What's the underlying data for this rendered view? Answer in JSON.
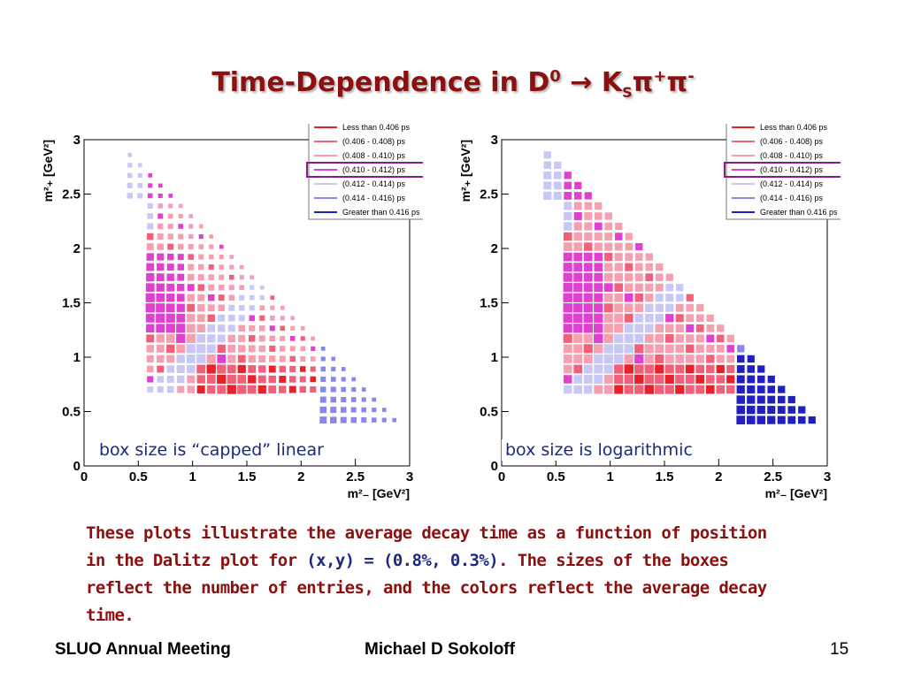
{
  "title": {
    "prefix": "Time-Dependence in D",
    "d_sup": "0",
    "arrow": " → K",
    "k_sub": "S",
    "pi1": "π",
    "pi1_sup": "+",
    "pi2": "π",
    "pi2_sup": "-"
  },
  "legend": {
    "entries": [
      {
        "label": "Less than 0.406 ps",
        "color": "#e8202a"
      },
      {
        "label": "(0.406 - 0.408) ps",
        "color": "#f06078"
      },
      {
        "label": "(0.408 - 0.410) ps",
        "color": "#f5a0b0"
      },
      {
        "label": "(0.410 - 0.412) ps",
        "color": "#e040d0"
      },
      {
        "label": "(0.412 - 0.414) ps",
        "color": "#c8c8f5"
      },
      {
        "label": "(0.414 - 0.416) ps",
        "color": "#8888e8"
      },
      {
        "label": "Greater than 0.416 ps",
        "color": "#2020c0"
      }
    ],
    "highlight_index": 3,
    "highlight_color": "#8a1a8a"
  },
  "chart_data": [
    {
      "type": "heatmap",
      "xlabel": "m²₋ [GeV²]",
      "ylabel": "m²₊ [GeV²]",
      "xlim": [
        0,
        3
      ],
      "ylim": [
        0,
        3
      ],
      "xticks": [
        "0",
        "0.5",
        "1",
        "1.5",
        "2",
        "2.5",
        "3"
      ],
      "yticks": [
        "0",
        "0.5",
        "1",
        "1.5",
        "2",
        "2.5",
        "3"
      ],
      "caption": "box size is “capped” linear",
      "box_scale": "linear-capped",
      "grid": false,
      "legend_position": "top-right"
    },
    {
      "type": "heatmap",
      "xlabel": "m²₋ [GeV²]",
      "ylabel": "m²₊ [GeV²]",
      "xlim": [
        0,
        3
      ],
      "ylim": [
        0,
        3
      ],
      "xticks": [
        "0",
        "0.5",
        "1",
        "1.5",
        "2",
        "2.5",
        "3"
      ],
      "yticks": [
        "0",
        "0.5",
        "1",
        "1.5",
        "2",
        "2.5",
        "3"
      ],
      "caption": "box size is logarithmic",
      "box_scale": "logarithmic",
      "grid": false,
      "legend_position": "top-right"
    }
  ],
  "description": {
    "part1": "These plots illustrate the average decay time as a function of position in the Dalitz plot for ",
    "highlight": "(x,y) = (0.8%, 0.3%)",
    "part2": ". The sizes of the boxes reflect the number of entries, and the colors reflect the average decay time."
  },
  "footer": {
    "left": "SLUO Annual Meeting",
    "center": "Michael D Sokoloff",
    "page": "15"
  }
}
